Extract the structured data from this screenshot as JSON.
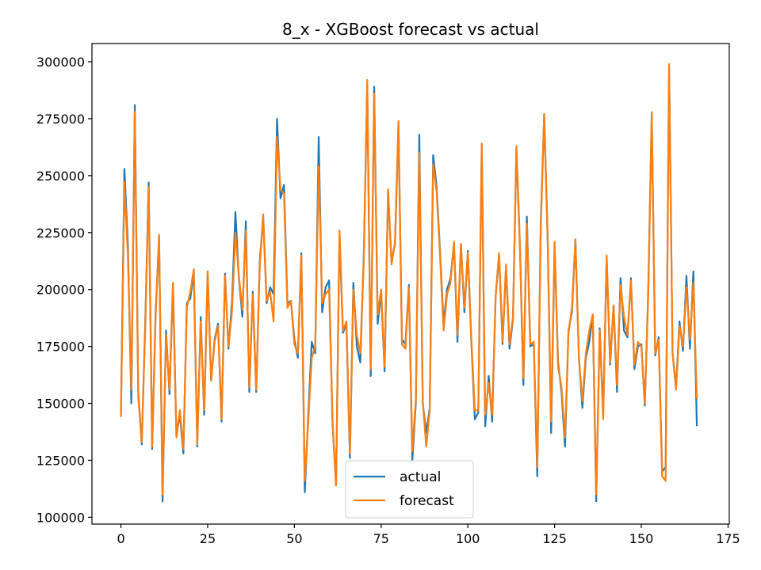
{
  "chart_data": {
    "type": "line",
    "title": "8_x - XGBoost forecast vs actual",
    "xlabel": "",
    "ylabel": "",
    "xlim": [
      -8.35,
      175.35
    ],
    "ylim": [
      97000,
      308000
    ],
    "xticks": [
      0,
      25,
      50,
      75,
      100,
      125,
      150,
      175
    ],
    "yticks": [
      100000,
      125000,
      150000,
      175000,
      200000,
      225000,
      250000,
      275000,
      300000
    ],
    "grid": false,
    "legend": {
      "location": "lower center",
      "entries": [
        "actual",
        "forecast"
      ]
    },
    "series": [
      {
        "name": "actual",
        "color": "#1f77b4",
        "values": [
          145000,
          253000,
          220000,
          150000,
          281000,
          155000,
          132000,
          185000,
          247000,
          130000,
          190000,
          223000,
          107000,
          182000,
          154000,
          202000,
          136000,
          145000,
          128000,
          194000,
          196000,
          208000,
          131000,
          188000,
          145000,
          207000,
          160000,
          178000,
          185000,
          142000,
          207000,
          174000,
          194000,
          234000,
          205000,
          188000,
          230000,
          155000,
          199000,
          155000,
          212000,
          232000,
          194000,
          201000,
          198000,
          275000,
          240000,
          246000,
          194000,
          195000,
          178000,
          170000,
          216000,
          111000,
          145000,
          177000,
          172000,
          267000,
          190000,
          201000,
          204000,
          141000,
          114000,
          224000,
          181000,
          185000,
          126000,
          203000,
          175000,
          168000,
          215000,
          290000,
          162000,
          289000,
          185000,
          199000,
          164000,
          243000,
          212000,
          220000,
          272000,
          178000,
          176000,
          202000,
          125000,
          150000,
          268000,
          150000,
          137000,
          148000,
          259000,
          245000,
          216000,
          185000,
          200000,
          205000,
          220000,
          177000,
          220000,
          190000,
          217000,
          177000,
          143000,
          146000,
          264000,
          140000,
          162000,
          142000,
          197000,
          215000,
          176000,
          210000,
          174000,
          187000,
          262000,
          219000,
          158000,
          232000,
          175000,
          176000,
          118000,
          229000,
          277000,
          222000,
          137000,
          219000,
          168000,
          155000,
          131000,
          182000,
          190000,
          222000,
          170000,
          148000,
          170000,
          177000,
          189000,
          107000,
          183000,
          145000,
          214000,
          167000,
          193000,
          155000,
          205000,
          182000,
          179000,
          205000,
          165000,
          175000,
          176000,
          149000,
          200000,
          277000,
          171000,
          179000,
          120000,
          122000,
          298000,
          172000,
          157000,
          186000,
          173000,
          206000,
          174000,
          208000,
          140000
        ]
      },
      {
        "name": "forecast",
        "color": "#ff7f0e",
        "values": [
          144000,
          247000,
          215000,
          156000,
          278000,
          153000,
          133000,
          183000,
          245000,
          131000,
          188000,
          224000,
          110000,
          180000,
          156000,
          203000,
          135000,
          147000,
          130000,
          192000,
          199000,
          209000,
          132000,
          186000,
          147000,
          208000,
          160000,
          177000,
          184000,
          143000,
          206000,
          175000,
          190000,
          225000,
          206000,
          191000,
          226000,
          157000,
          198000,
          156000,
          210000,
          233000,
          195000,
          199000,
          186000,
          267000,
          244000,
          242000,
          192000,
          195000,
          176000,
          172000,
          215000,
          116000,
          142000,
          170000,
          175000,
          254000,
          194000,
          198000,
          200000,
          142000,
          114000,
          226000,
          182000,
          186000,
          128000,
          200000,
          180000,
          172000,
          213000,
          292000,
          165000,
          286000,
          189000,
          200000,
          166000,
          244000,
          211000,
          221000,
          274000,
          176000,
          174000,
          201000,
          129000,
          152000,
          260000,
          151000,
          131000,
          147000,
          255000,
          243000,
          214000,
          182000,
          198000,
          203000,
          221000,
          180000,
          220000,
          192000,
          216000,
          178000,
          147000,
          147000,
          264000,
          145000,
          159000,
          145000,
          197000,
          216000,
          177000,
          211000,
          176000,
          188000,
          263000,
          220000,
          161000,
          229000,
          176000,
          177000,
          122000,
          226000,
          277000,
          223000,
          142000,
          221000,
          166000,
          157000,
          135000,
          181000,
          192000,
          222000,
          170000,
          151000,
          172000,
          182000,
          189000,
          110000,
          182000,
          143000,
          215000,
          168000,
          193000,
          158000,
          202000,
          188000,
          180000,
          204000,
          167000,
          177000,
          175000,
          150000,
          198000,
          278000,
          172000,
          178000,
          118000,
          116000,
          299000,
          172000,
          156000,
          184000,
          175000,
          201000,
          178000,
          203000,
          152000
        ]
      }
    ]
  }
}
